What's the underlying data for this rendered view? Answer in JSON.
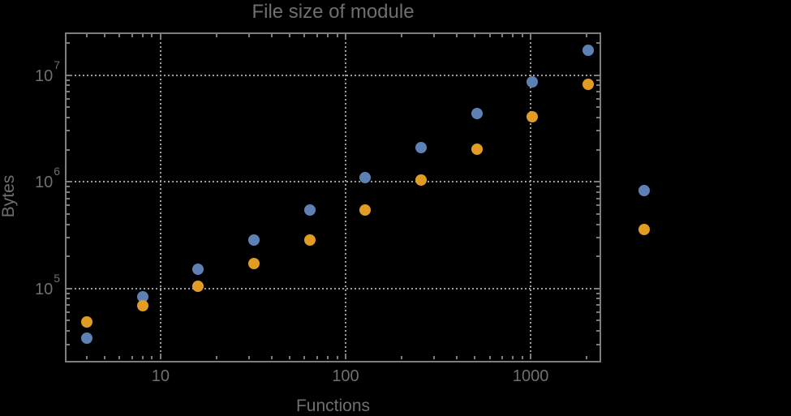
{
  "title": "File size of module",
  "colors": {
    "background": "#000000",
    "frame": "#7d7d7d",
    "gridlines": "#9c9c9c",
    "text": "#6f6f6f",
    "series1": "#5e81b5",
    "series2": "#e19c24"
  },
  "chart_data": {
    "type": "scatter",
    "title": "File size of module",
    "xlabel": "Functions",
    "ylabel": "Bytes",
    "x_scale": "log",
    "y_scale": "log",
    "grid": "dotted",
    "legend": "none",
    "x": [
      4,
      8,
      16,
      32,
      64,
      128,
      256,
      512,
      1024,
      2048,
      4096
    ],
    "series": [
      {
        "name": "series-1-blue",
        "color": "#5e81b5",
        "values": [
          34000,
          83000,
          152000,
          286000,
          543000,
          1090000,
          2080000,
          4390000,
          8660000,
          17200000,
          826000
        ]
      },
      {
        "name": "series-2-orange",
        "color": "#e19c24",
        "values": [
          48600,
          69000,
          105000,
          170000,
          286000,
          541000,
          1030000,
          2030000,
          4080000,
          8180000,
          360000
        ]
      }
    ],
    "x_ticks": [
      {
        "value": 10,
        "label": "10"
      },
      {
        "value": 100,
        "label": "100"
      },
      {
        "value": 1000,
        "label": "1000"
      }
    ],
    "y_ticks": [
      {
        "value": 100000,
        "base": "10",
        "exp": "5"
      },
      {
        "value": 1000000,
        "base": "10",
        "exp": "6"
      },
      {
        "value": 10000000,
        "base": "10",
        "exp": "7"
      }
    ],
    "xlim_log": [
      0.492,
      3.372
    ],
    "ylim_log": [
      4.337,
      7.384
    ]
  }
}
